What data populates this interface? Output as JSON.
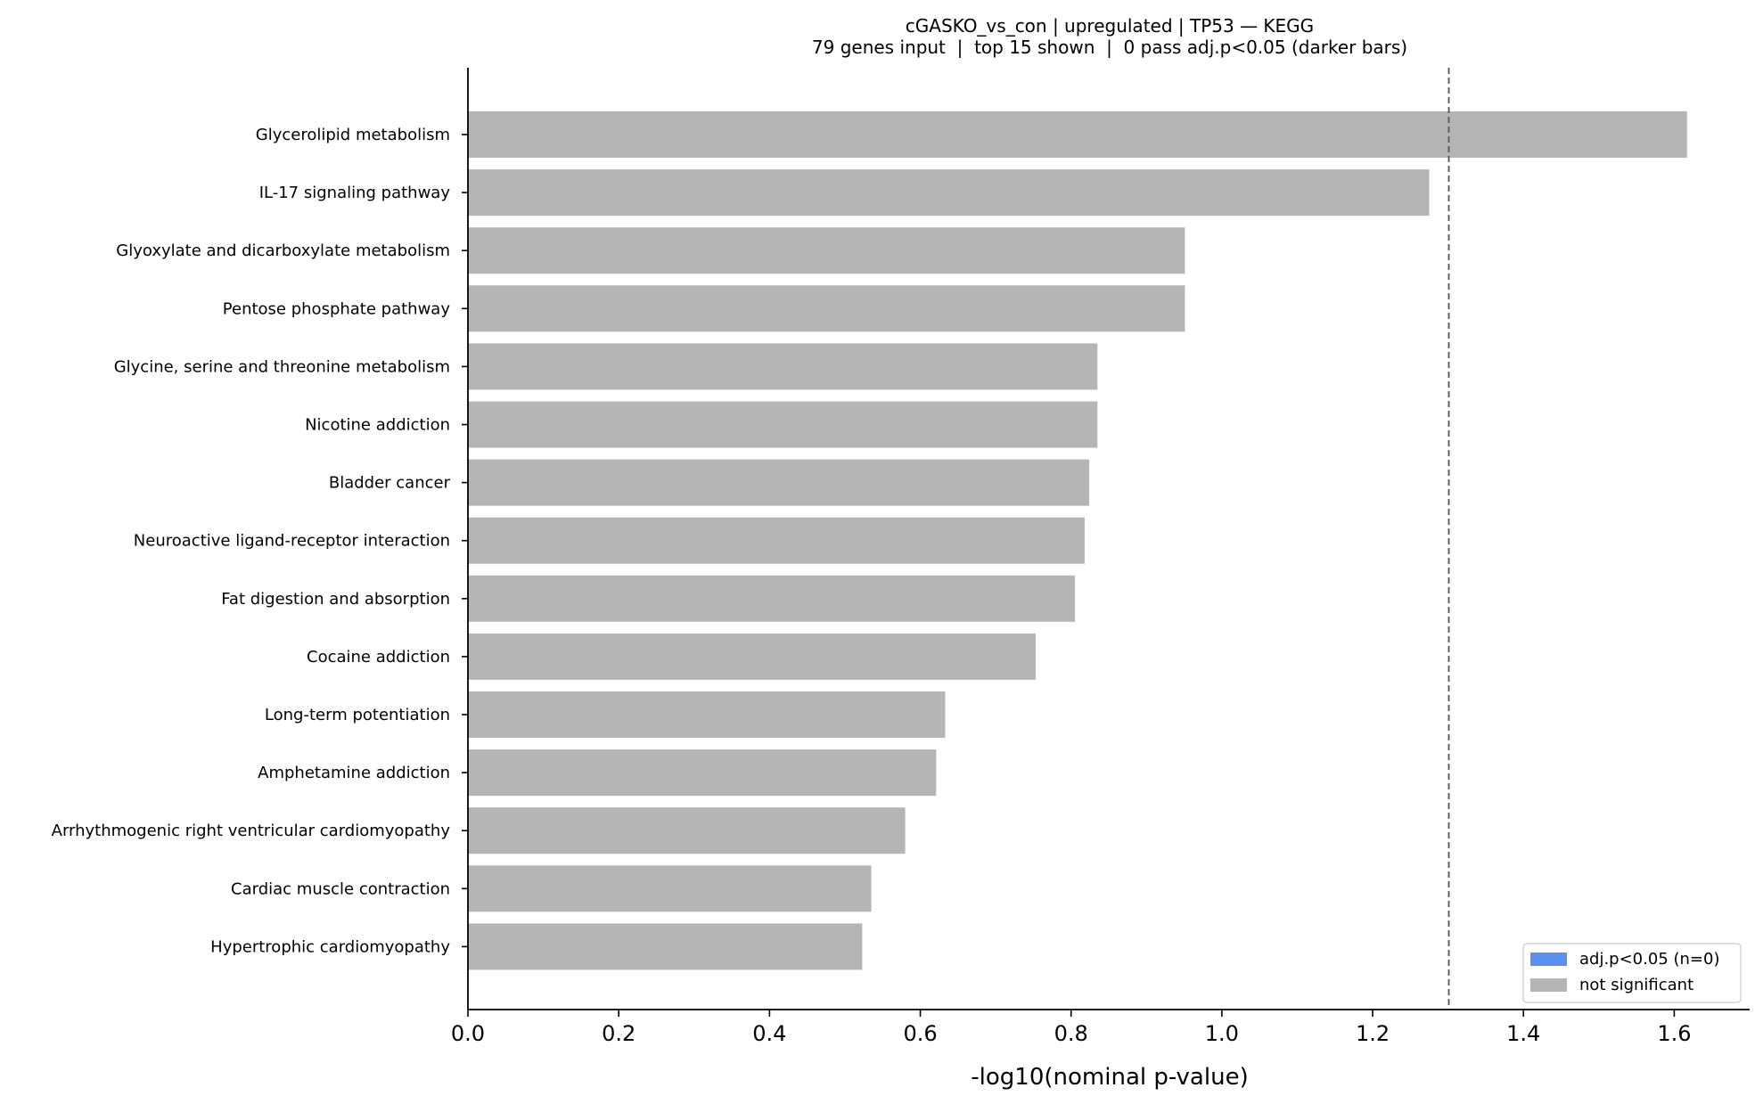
{
  "chart_data": {
    "type": "bar",
    "orientation": "horizontal",
    "title": "cGASKO_vs_con | upregulated | TP53 — KEGG",
    "subtitle": "79 genes input  |  top 15 shown  |  0 pass adj.p<0.05 (darker bars)",
    "xlabel": "-log10(nominal p-value)",
    "ylabel": "",
    "xlim": [
      0,
      1.7
    ],
    "xticks": [
      "0.0",
      "0.2",
      "0.4",
      "0.6",
      "0.8",
      "1.0",
      "1.2",
      "1.4",
      "1.6"
    ],
    "threshold": 1.301,
    "grid": false,
    "legend_position": "bottom-right",
    "categories": [
      "Glycerolipid metabolism",
      "IL-17 signaling pathway",
      "Glyoxylate and dicarboxylate metabolism",
      "Pentose phosphate pathway",
      "Glycine, serine and threonine metabolism",
      "Nicotine addiction",
      "Bladder cancer",
      "Neuroactive ligand-receptor interaction",
      "Fat digestion and absorption",
      "Cocaine addiction",
      "Long-term potentiation",
      "Amphetamine addiction",
      "Arrhythmogenic right ventricular cardiomyopathy",
      "Cardiac muscle contraction",
      "Hypertrophic cardiomyopathy"
    ],
    "values": [
      1.617,
      1.275,
      0.951,
      0.951,
      0.835,
      0.835,
      0.824,
      0.818,
      0.805,
      0.753,
      0.633,
      0.621,
      0.58,
      0.535,
      0.523
    ],
    "significant": [
      false,
      false,
      false,
      false,
      false,
      false,
      false,
      false,
      false,
      false,
      false,
      false,
      false,
      false,
      false
    ],
    "legend": [
      {
        "label": "adj.p<0.05 (n=0)",
        "color": "#5b8ff0"
      },
      {
        "label": "not significant",
        "color": "#b5b5b5"
      }
    ],
    "colors": {
      "significant": "#5b8ff0",
      "not_significant": "#b5b5b5",
      "threshold_line": "#555555"
    }
  }
}
